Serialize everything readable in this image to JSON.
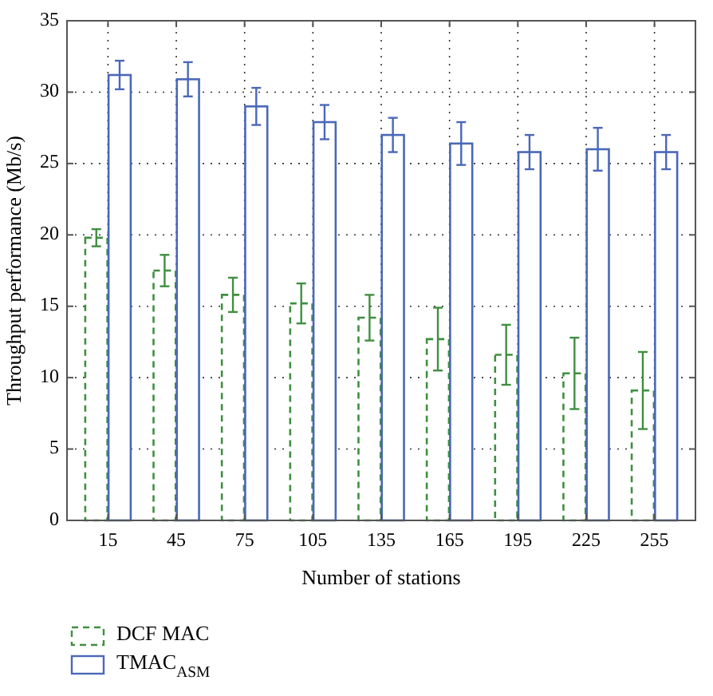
{
  "chart_data": {
    "type": "bar",
    "xlabel": "Number of stations",
    "ylabel": "Throughput performance (Mb/s)",
    "categories": [
      "15",
      "45",
      "75",
      "105",
      "135",
      "165",
      "195",
      "225",
      "255"
    ],
    "series": [
      {
        "name": "DCF MAC",
        "color": "#3f8f3f",
        "line_style": "dashed",
        "values": [
          19.8,
          17.5,
          15.8,
          15.2,
          14.2,
          12.7,
          11.6,
          10.3,
          9.1
        ],
        "errors": [
          0.6,
          1.1,
          1.2,
          1.4,
          1.6,
          2.2,
          2.1,
          2.5,
          2.7
        ]
      },
      {
        "name": "TMAC$_{ASM}$",
        "color": "#4a68b8",
        "line_style": "solid",
        "values": [
          31.2,
          30.9,
          29.0,
          27.9,
          27.0,
          26.4,
          25.8,
          26.0,
          25.8
        ],
        "errors": [
          1.0,
          1.2,
          1.3,
          1.2,
          1.2,
          1.5,
          1.2,
          1.5,
          1.2
        ]
      }
    ],
    "ylim": [
      0,
      35
    ],
    "yticks": [
      0,
      5,
      10,
      15,
      20,
      25,
      30,
      35
    ],
    "grid": true,
    "legend": "bottom left"
  }
}
